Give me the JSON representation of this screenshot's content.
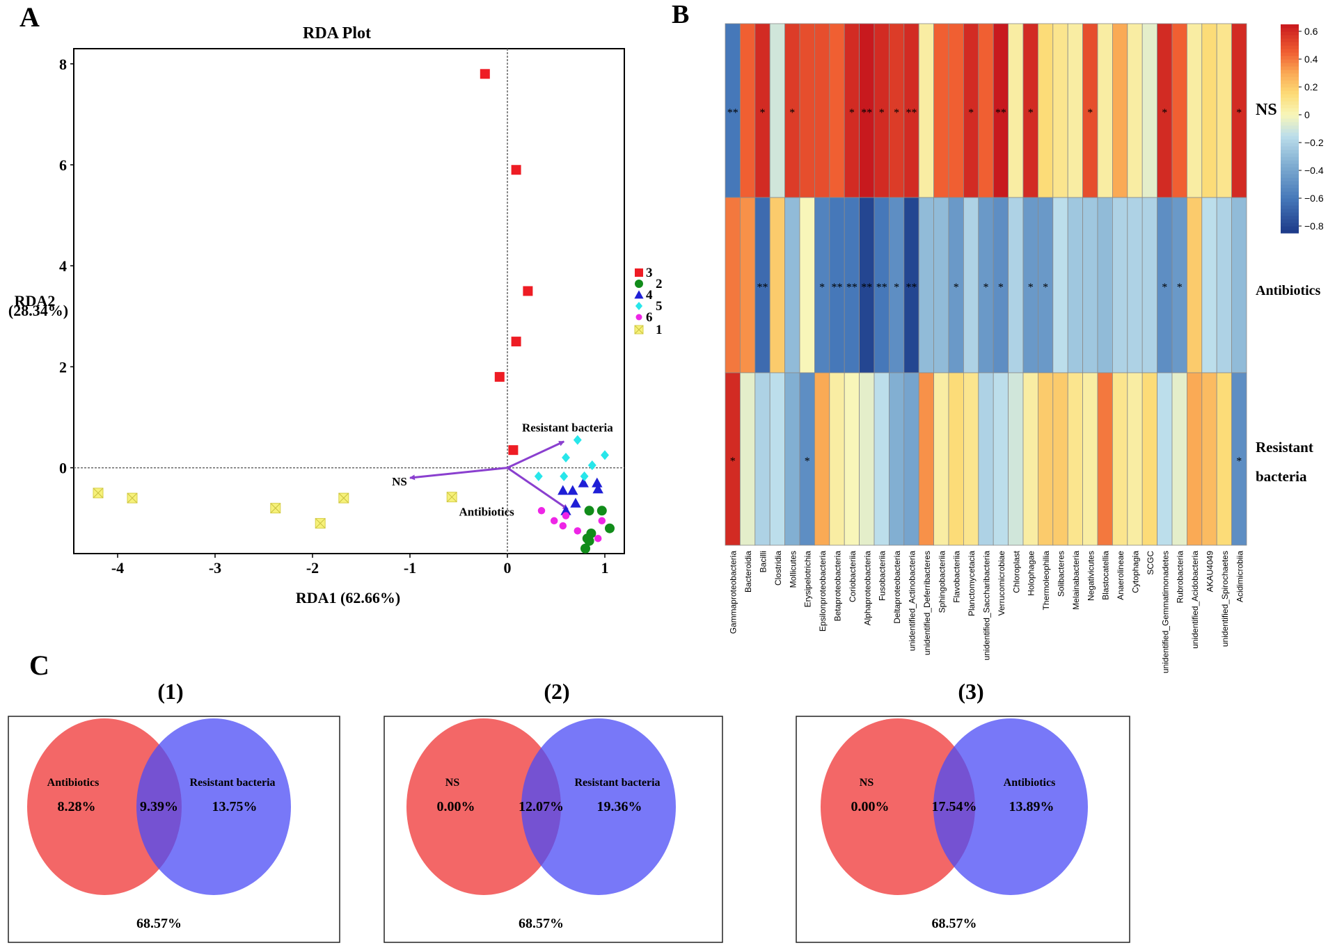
{
  "panel_letters": {
    "a": "A",
    "b": "B",
    "c": "C"
  },
  "colors": {
    "axis": "#000000",
    "arrow": "#8a3fcf",
    "group_3": "#ee1c24",
    "group_2": "#118c1a",
    "group_4": "#1f1fd6",
    "group_5": "#27e6ea",
    "group_6": "#ee25e6",
    "group_1": "#f6f17a",
    "venn_left": "#f25656",
    "venn_right": "#4b4bf5"
  },
  "chart_data": [
    {
      "id": "rda",
      "type": "scatter",
      "title": "RDA Plot",
      "xlabel": "RDA1 (62.66%)",
      "ylabel_line1": "RDA2",
      "ylabel_line2": "(28.34%)",
      "xlim": [
        -4.45,
        1.2
      ],
      "ylim": [
        -1.7,
        8.3
      ],
      "xticks": [
        "-4",
        "-3",
        "-2",
        "-1",
        "0",
        "1"
      ],
      "xtick_values": [
        -4,
        -3,
        -2,
        -1,
        0,
        1
      ],
      "yticks": [
        "0",
        "2",
        "4",
        "6",
        "8"
      ],
      "ytick_values": [
        0,
        2,
        4,
        6,
        8
      ],
      "legend": [
        {
          "label": "3",
          "group": "3",
          "marker": "square"
        },
        {
          "label": "2",
          "group": "2",
          "marker": "circle"
        },
        {
          "label": "4",
          "group": "4",
          "marker": "triangle"
        },
        {
          "label": "5",
          "group": "5",
          "marker": "diamond"
        },
        {
          "label": "6",
          "group": "6",
          "marker": "smallcircle"
        },
        {
          "label": "1",
          "group": "1",
          "marker": "hatched"
        }
      ],
      "series": [
        {
          "name": "3",
          "marker": "square",
          "points": [
            [
              -0.23,
              7.8
            ],
            [
              0.09,
              5.9
            ],
            [
              0.21,
              3.5
            ],
            [
              0.09,
              2.5
            ],
            [
              -0.08,
              1.8
            ],
            [
              0.06,
              0.35
            ]
          ]
        },
        {
          "name": "2",
          "marker": "circle",
          "points": [
            [
              0.84,
              -0.85
            ],
            [
              0.97,
              -0.85
            ],
            [
              0.86,
              -1.3
            ],
            [
              1.05,
              -1.2
            ],
            [
              0.82,
              -1.4
            ],
            [
              0.8,
              -1.6
            ],
            [
              0.84,
              -1.45
            ]
          ]
        },
        {
          "name": "4",
          "marker": "triangle",
          "points": [
            [
              0.57,
              -0.45
            ],
            [
              0.67,
              -0.45
            ],
            [
              0.78,
              -0.3
            ],
            [
              0.92,
              -0.3
            ],
            [
              0.93,
              -0.42
            ],
            [
              0.7,
              -0.7
            ],
            [
              0.6,
              -0.85
            ]
          ]
        },
        {
          "name": "5",
          "marker": "diamond",
          "points": [
            [
              0.72,
              0.55
            ],
            [
              1.0,
              0.25
            ],
            [
              0.6,
              0.2
            ],
            [
              0.87,
              0.05
            ],
            [
              0.32,
              -0.17
            ],
            [
              0.58,
              -0.17
            ],
            [
              0.79,
              -0.17
            ]
          ]
        },
        {
          "name": "6",
          "marker": "smallcircle",
          "points": [
            [
              0.35,
              -0.85
            ],
            [
              0.48,
              -1.05
            ],
            [
              0.6,
              -0.95
            ],
            [
              0.57,
              -1.15
            ],
            [
              0.72,
              -1.25
            ],
            [
              0.93,
              -1.4
            ],
            [
              0.97,
              -1.05
            ]
          ]
        },
        {
          "name": "1",
          "marker": "hatched",
          "points": [
            [
              -4.2,
              -0.5
            ],
            [
              -3.85,
              -0.6
            ],
            [
              -2.38,
              -0.8
            ],
            [
              -1.92,
              -1.1
            ],
            [
              -1.68,
              -0.6
            ],
            [
              -0.57,
              -0.58
            ]
          ]
        }
      ],
      "arrows": [
        {
          "label": "Resistant bacteria",
          "end": [
            0.58,
            0.52
          ]
        },
        {
          "label": "NS",
          "end": [
            -1.0,
            -0.2
          ]
        },
        {
          "label": "Antibiotics",
          "end": [
            0.62,
            -0.82
          ]
        }
      ]
    },
    {
      "id": "heatmap",
      "type": "heatmap",
      "rows": [
        "NS",
        "Antibiotics",
        "Resistant bacteria"
      ],
      "row_label_lines": [
        [
          "NS"
        ],
        [
          "Antibiotics"
        ],
        [
          "Resistant",
          "bacteria"
        ]
      ],
      "columns": [
        "Gammaproteobacteria",
        "Bacteroidia",
        "Bacilli",
        "Clostridia",
        "Mollicutes",
        "Erysipelotrichia",
        "Epsilonproteobacteria",
        "Betaproteobacteria",
        "Coriobacteriia",
        "Alphaproteobacteria",
        "Fusobacteriia",
        "Deltaproteobacteria",
        "unidentified_Actinobacteria",
        "unidentified_Deferribacteres",
        "Sphingobacteriia",
        "Flavobacteriia",
        "Planctomycetacia",
        "unidentified_Saccharibacteria",
        "Verrucomicrobiae",
        "Chloroplast",
        "Holophagae",
        "Thermoleophilia",
        "Solibacteres",
        "Melainabacteria",
        "Negativicutes",
        "Blastocatellia",
        "Anaerolineae",
        "Cytophagia",
        "SCGC",
        "unidentified_Gemmatimonadetes",
        "Rubrobacteria",
        "unidentified_Acidobacteria",
        "AKAU4049",
        "unidentified_Spirochaetes",
        "Acidimicrobiia"
      ],
      "values": [
        [
          -0.6,
          0.45,
          0.6,
          -0.1,
          0.55,
          0.5,
          0.5,
          0.45,
          0.6,
          0.65,
          0.6,
          0.55,
          0.6,
          0.05,
          0.45,
          0.45,
          0.6,
          0.45,
          0.7,
          0.05,
          0.6,
          0.15,
          0.1,
          0.05,
          0.5,
          0.05,
          0.3,
          0.05,
          -0.05,
          0.6,
          0.45,
          0.05,
          0.15,
          0.1,
          0.6
        ],
        [
          0.4,
          0.35,
          -0.65,
          0.2,
          -0.3,
          0.0,
          -0.55,
          -0.6,
          -0.6,
          -0.8,
          -0.6,
          -0.5,
          -0.8,
          -0.3,
          -0.3,
          -0.45,
          -0.2,
          -0.45,
          -0.5,
          -0.2,
          -0.45,
          -0.45,
          -0.15,
          -0.25,
          -0.25,
          -0.3,
          -0.2,
          -0.2,
          -0.2,
          -0.5,
          -0.45,
          0.2,
          -0.15,
          -0.2,
          -0.3
        ],
        [
          0.6,
          -0.05,
          -0.2,
          -0.15,
          -0.35,
          -0.5,
          0.3,
          0.05,
          0.0,
          -0.05,
          -0.15,
          -0.35,
          -0.4,
          0.35,
          0.05,
          0.15,
          0.1,
          -0.2,
          -0.15,
          -0.1,
          0.05,
          0.2,
          0.2,
          0.1,
          0.05,
          0.4,
          0.1,
          0.05,
          0.15,
          -0.15,
          -0.05,
          0.3,
          0.25,
          0.15,
          -0.5
        ]
      ],
      "stars": [
        [
          "**",
          "",
          "*",
          "",
          "*",
          "",
          "",
          "",
          "*",
          "**",
          "*",
          "*",
          "**",
          "",
          "",
          "",
          "*",
          "",
          "**",
          "",
          "*",
          "",
          "",
          "",
          "*",
          "",
          "",
          "",
          "",
          "*",
          "",
          "",
          "",
          "",
          "*"
        ],
        [
          "",
          "",
          "**",
          "",
          "",
          "",
          "*",
          "**",
          "**",
          "**",
          "**",
          "*",
          "**",
          "",
          "",
          "*",
          "",
          "*",
          "*",
          "",
          "*",
          "*",
          "",
          "",
          "",
          "",
          "",
          "",
          "",
          "*",
          "*",
          "",
          "",
          "",
          ""
        ],
        [
          "*",
          "",
          "",
          "",
          "",
          "*",
          "",
          "",
          "",
          "",
          "",
          "",
          "",
          "",
          "",
          "",
          "",
          "",
          "",
          "",
          "",
          "",
          "",
          "",
          "",
          "",
          "",
          "",
          "",
          "",
          "",
          "",
          "",
          "",
          "*"
        ]
      ],
      "colorbar": {
        "ticks": [
          "0.6",
          "0.4",
          "0.2",
          "0",
          "−0.2",
          "−0.4",
          "−0.6",
          "−0.8"
        ],
        "tick_values": [
          0.6,
          0.4,
          0.2,
          0,
          -0.2,
          -0.4,
          -0.6,
          -0.8
        ],
        "range": [
          -0.85,
          0.65
        ]
      }
    }
  ],
  "venn": [
    {
      "num": "(1)",
      "left_label": "Antibiotics",
      "left_value": "8.28%",
      "overlap_value": "9.39%",
      "right_label": "Resistant bacteria",
      "right_value": "13.75%",
      "outside_value": "68.57%"
    },
    {
      "num": "(2)",
      "left_label": "NS",
      "left_value": "0.00%",
      "overlap_value": "12.07%",
      "right_label": "Resistant bacteria",
      "right_value": "19.36%",
      "outside_value": "68.57%"
    },
    {
      "num": "(3)",
      "left_label": "NS",
      "left_value": "0.00%",
      "overlap_value": "17.54%",
      "right_label": "Antibiotics",
      "right_value": "13.89%",
      "outside_value": "68.57%"
    }
  ]
}
